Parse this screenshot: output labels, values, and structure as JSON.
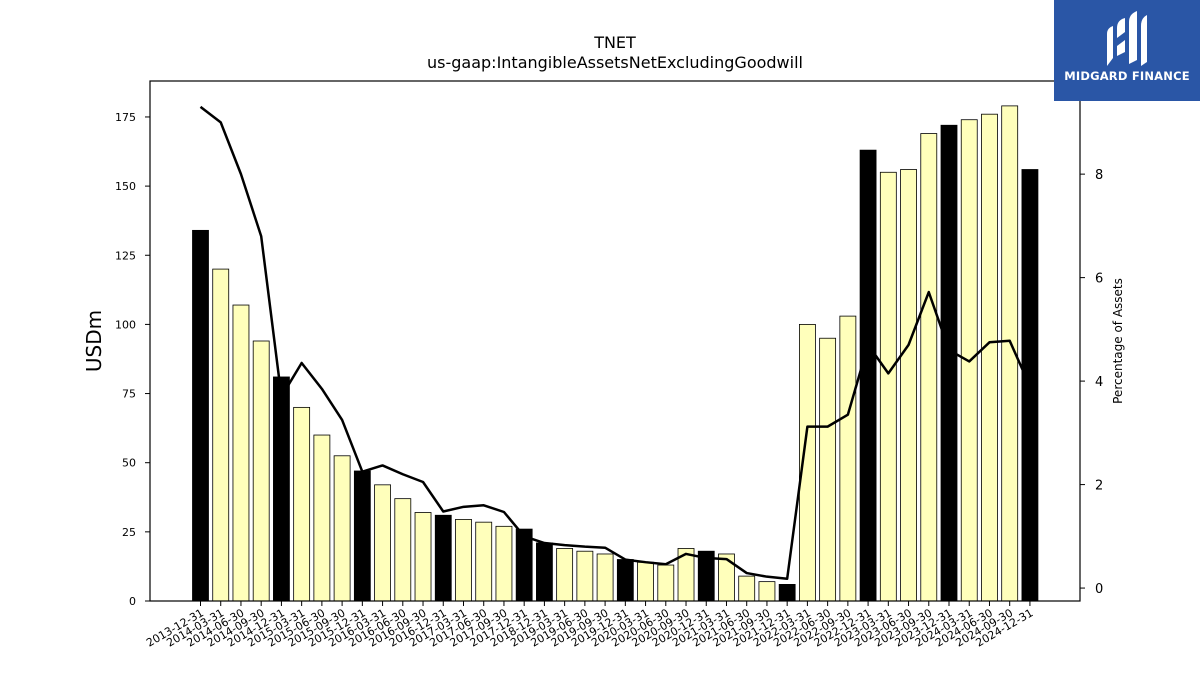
{
  "header": {
    "title": "TNET",
    "subtitle": "us-gaap:IntangibleAssetsNetExcludingGoodwill"
  },
  "logo": {
    "text": "MIDGARD FINANCE",
    "background": "#2a56a6"
  },
  "chart_data": {
    "type": "bar",
    "ylabel": "USDm",
    "y2label": "Percentage of Assets",
    "ylim": [
      0,
      188
    ],
    "y2lim": [
      -0.25,
      9.8
    ],
    "yticks": [
      0,
      25,
      50,
      75,
      100,
      125,
      150,
      175
    ],
    "y2ticks": [
      0,
      2,
      4,
      6,
      8
    ],
    "grid": false,
    "colors": {
      "bar_quarter": "#ffffbb",
      "bar_year_end": "#000000",
      "line": "#000000"
    },
    "categories": [
      "2013-12-31",
      "2014-03-31",
      "2014-06-30",
      "2014-09-30",
      "2014-12-31",
      "2015-03-31",
      "2015-06-30",
      "2015-09-30",
      "2015-12-31",
      "2016-03-31",
      "2016-06-30",
      "2016-09-30",
      "2016-12-31",
      "2017-03-31",
      "2017-06-30",
      "2017-09-30",
      "2017-12-31",
      "2018-12-31",
      "2019-03-31",
      "2019-06-30",
      "2019-09-30",
      "2019-12-31",
      "2020-03-31",
      "2020-06-30",
      "2020-09-30",
      "2020-12-31",
      "2021-03-31",
      "2021-06-30",
      "2021-09-30",
      "2021-12-31",
      "2022-03-31",
      "2022-06-30",
      "2022-09-30",
      "2022-12-31",
      "2023-03-31",
      "2023-06-30",
      "2023-09-30",
      "2023-12-31",
      "2024-03-31",
      "2024-06-30",
      "2024-09-30",
      "2024-12-31"
    ],
    "series": [
      {
        "kind": "bar",
        "values": [
          134,
          120,
          107,
          94,
          81,
          70,
          60,
          52.5,
          47,
          42,
          37,
          32,
          31,
          29.5,
          28.5,
          27,
          26,
          21,
          19,
          18,
          17,
          15,
          14,
          13,
          19,
          18,
          17,
          9,
          7,
          6,
          100,
          95,
          103,
          163,
          155,
          156,
          169,
          172,
          174,
          176,
          179,
          156
        ],
        "year_end": [
          true,
          false,
          false,
          false,
          true,
          false,
          false,
          false,
          true,
          false,
          false,
          false,
          true,
          false,
          false,
          false,
          true,
          true,
          false,
          false,
          false,
          true,
          false,
          false,
          false,
          true,
          false,
          false,
          false,
          true,
          false,
          false,
          false,
          true,
          false,
          false,
          false,
          true,
          false,
          false,
          false,
          true
        ]
      },
      {
        "kind": "line",
        "axis": "right",
        "values": [
          9.3,
          9.0,
          8.0,
          6.8,
          3.7,
          4.35,
          3.85,
          3.25,
          2.25,
          2.37,
          2.2,
          2.05,
          1.48,
          1.57,
          1.6,
          1.47,
          1.0,
          0.87,
          0.83,
          0.8,
          0.78,
          0.55,
          0.5,
          0.46,
          0.66,
          0.58,
          0.56,
          0.29,
          0.22,
          0.18,
          3.12,
          3.12,
          3.35,
          4.7,
          4.15,
          4.7,
          5.72,
          4.6,
          4.38,
          4.75,
          4.78,
          3.9
        ]
      }
    ]
  }
}
